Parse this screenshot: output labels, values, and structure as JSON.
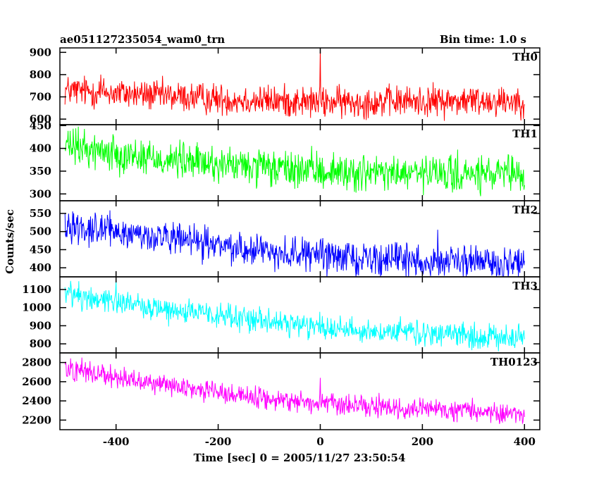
{
  "header": {
    "title": "ae051127235054_wam0_trn",
    "bin_time": "Bin time: 1.0 s"
  },
  "chart_data": {
    "type": "line",
    "xlabel": "Time [sec] 0 = 2005/11/27 23:50:54",
    "ylabel": "Counts/sec",
    "xlim": [
      -510,
      430
    ],
    "x_ticks": [
      -400,
      -200,
      0,
      200,
      400
    ],
    "x_range": [
      -500,
      400
    ],
    "bin_time_s": 1.0,
    "panels": [
      {
        "name": "TH0",
        "color": "#ff0000",
        "ylim": [
          575,
          920
        ],
        "ticks": [
          600,
          700,
          800,
          900
        ],
        "trend": [
          [
            -500,
            730
          ],
          [
            -350,
            710
          ],
          [
            -200,
            690
          ],
          [
            0,
            675
          ],
          [
            200,
            680
          ],
          [
            400,
            685
          ]
        ],
        "noise": 35,
        "spikes": [
          [
            0,
            920
          ],
          [
            -430,
            800
          ]
        ]
      },
      {
        "name": "TH1",
        "color": "#00ff00",
        "ylim": [
          285,
          452
        ],
        "ticks": [
          300,
          350,
          400,
          450
        ],
        "trend": [
          [
            -500,
            405
          ],
          [
            -300,
            375
          ],
          [
            -100,
            355
          ],
          [
            100,
            345
          ],
          [
            400,
            340
          ]
        ],
        "noise": 20,
        "spikes": []
      },
      {
        "name": "TH2",
        "color": "#0000ff",
        "ylim": [
          375,
          585
        ],
        "ticks": [
          400,
          450,
          500,
          550
        ],
        "trend": [
          [
            -500,
            520
          ],
          [
            -300,
            480
          ],
          [
            -100,
            445
          ],
          [
            100,
            425
          ],
          [
            400,
            410
          ]
        ],
        "noise": 22,
        "spikes": [
          [
            230,
            505
          ]
        ]
      },
      {
        "name": "TH3",
        "color": "#00ffff",
        "ylim": [
          750,
          1170
        ],
        "ticks": [
          800,
          900,
          1000,
          1100
        ],
        "trend": [
          [
            -500,
            1080
          ],
          [
            -300,
            990
          ],
          [
            -100,
            920
          ],
          [
            100,
            870
          ],
          [
            400,
            830
          ]
        ],
        "noise": 35,
        "spikes": [
          [
            -400,
            1150
          ]
        ]
      },
      {
        "name": "TH0123",
        "color": "#ff00ff",
        "ylim": [
          2100,
          2900
        ],
        "ticks": [
          2200,
          2400,
          2600,
          2800
        ],
        "trend": [
          [
            -500,
            2750
          ],
          [
            -300,
            2560
          ],
          [
            -100,
            2420
          ],
          [
            100,
            2330
          ],
          [
            400,
            2270
          ]
        ],
        "noise": 55,
        "spikes": [
          [
            0,
            2640
          ],
          [
            -300,
            2630
          ]
        ]
      }
    ]
  }
}
